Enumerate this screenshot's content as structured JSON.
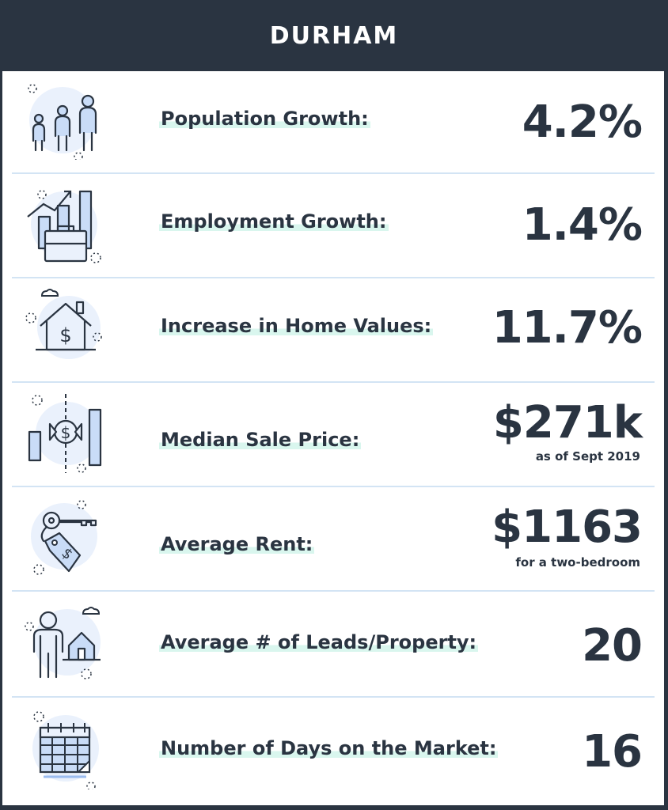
{
  "title": "DURHAM",
  "stats": [
    {
      "label": "Population Growth:",
      "value": "4.2%",
      "icon": "family-icon"
    },
    {
      "label": "Employment Growth:",
      "value": "1.4%",
      "icon": "briefcase-growth-icon"
    },
    {
      "label": "Increase in Home Values:",
      "value": "11.7%",
      "icon": "house-dollar-icon"
    },
    {
      "label": "Median Sale Price:",
      "value": "$271k",
      "note": "as  of Sept 2019",
      "icon": "price-chart-icon"
    },
    {
      "label": "Average Rent:",
      "value": "$1163",
      "note": "for a two-bedroom",
      "icon": "key-tag-icon"
    },
    {
      "label": "Average # of Leads/Property:",
      "value": "20",
      "icon": "person-house-icon"
    },
    {
      "label": "Number of Days on the Market:",
      "value": "16",
      "icon": "calendar-icon"
    }
  ],
  "colors": {
    "header_bg": "#2a3441",
    "text": "#2a3441",
    "icon_stroke": "#2a3441",
    "icon_fill": "#c9dcf7",
    "icon_circle": "#eaf1fc",
    "label_highlight": "#d9f6ee",
    "divider": "#d3e4f4"
  }
}
